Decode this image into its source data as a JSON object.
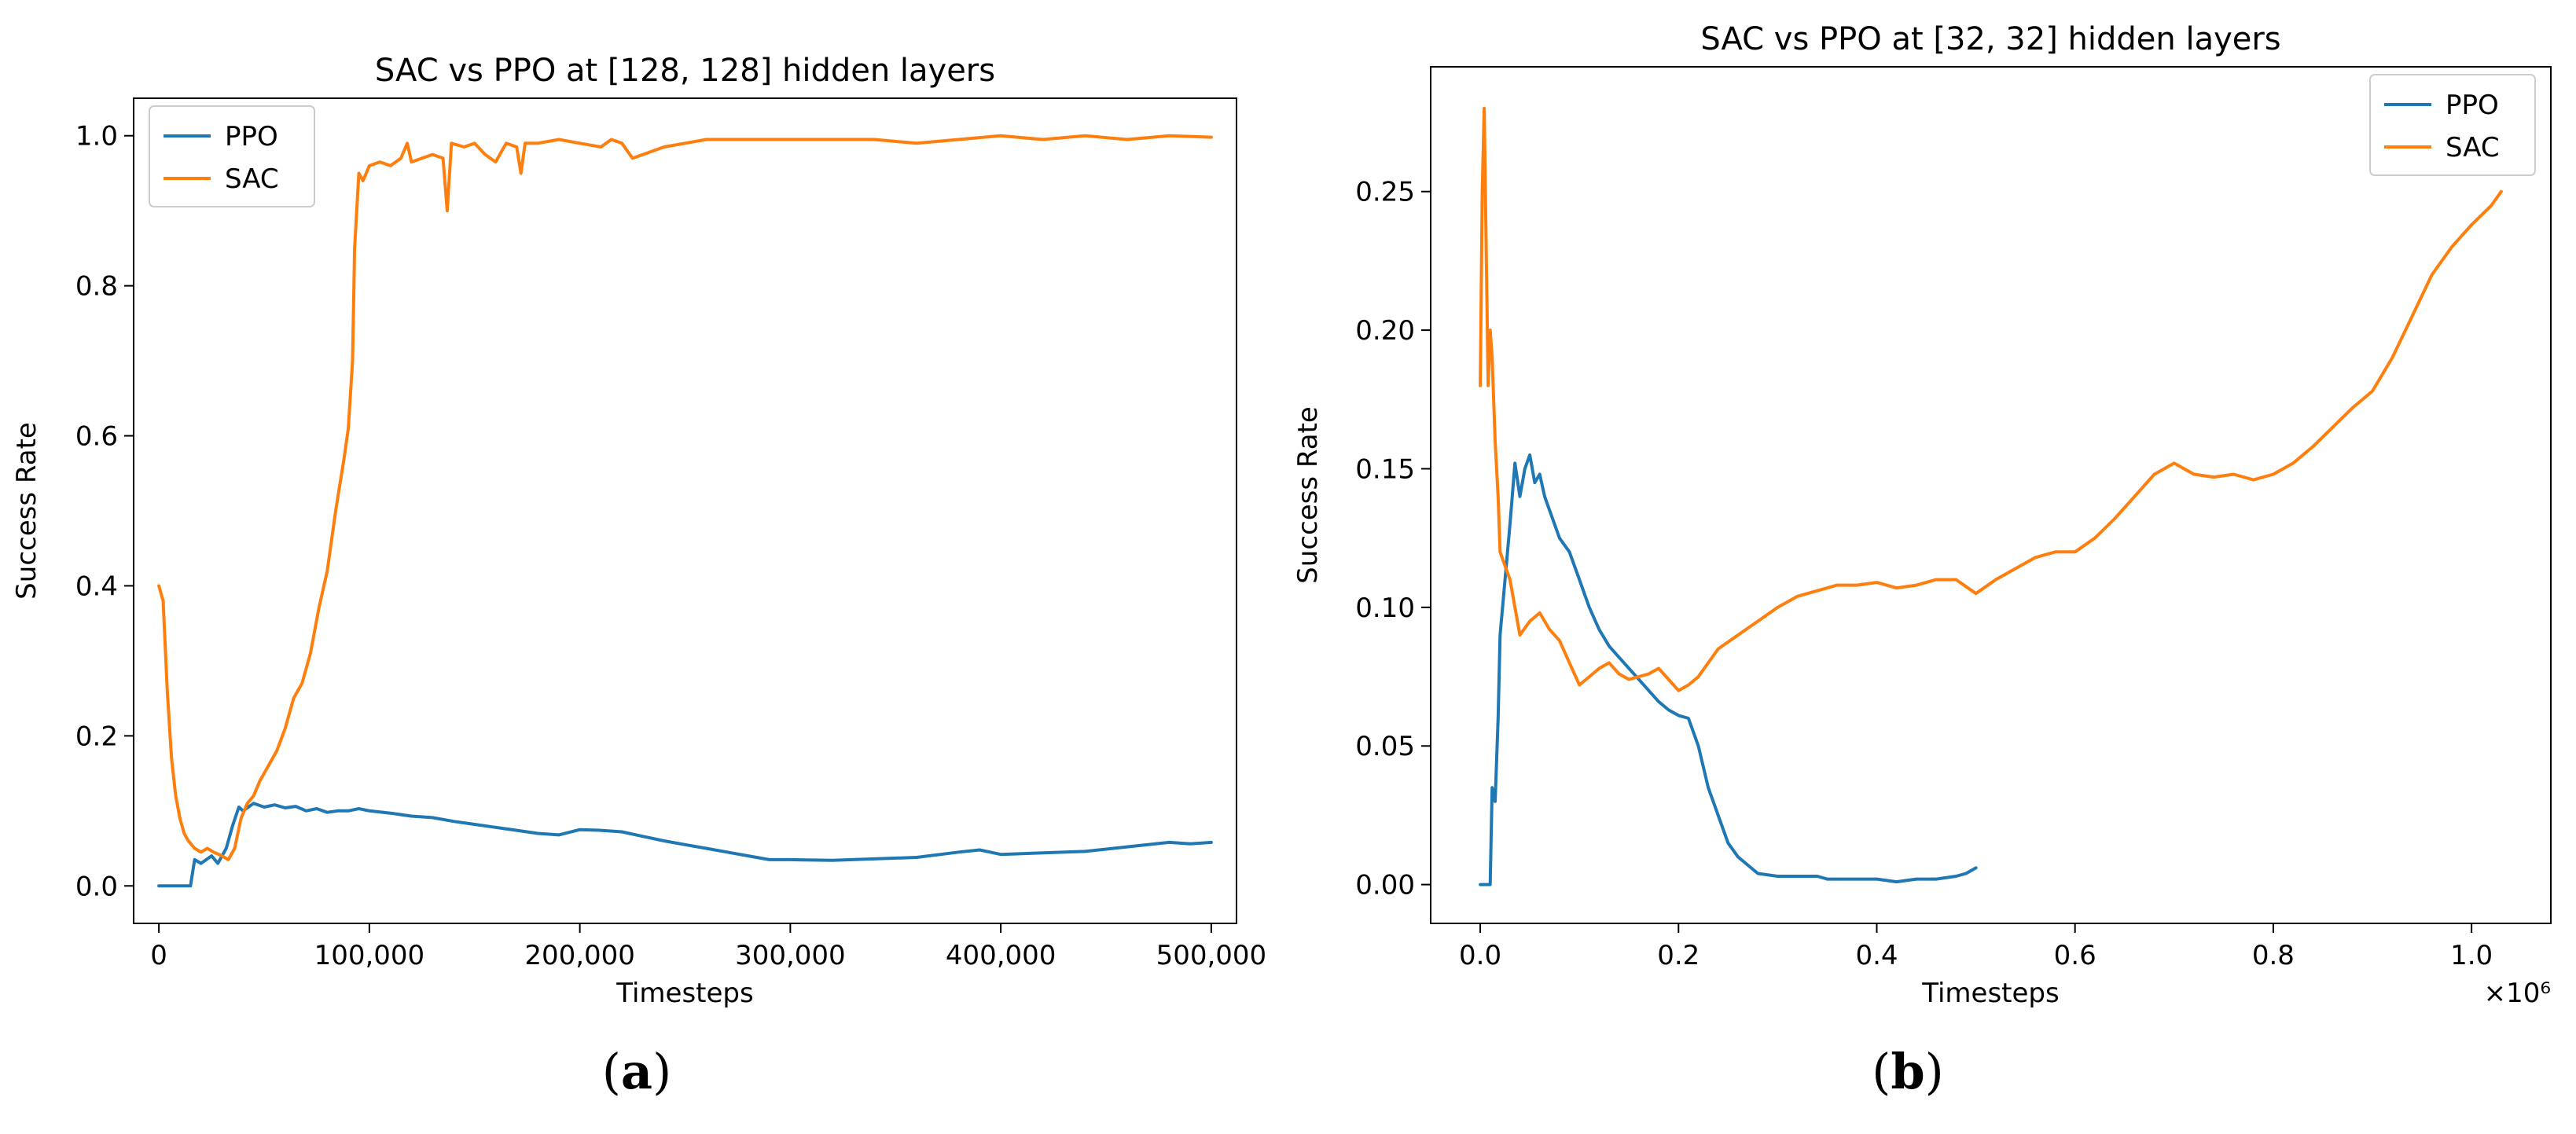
{
  "figure": {
    "panel_labels": [
      "(a)",
      "(b)"
    ]
  },
  "colors": {
    "PPO": "#1f77b4",
    "SAC": "#ff7f0e",
    "axis": "#000000"
  },
  "chart_data": [
    {
      "type": "line",
      "title": "SAC vs PPO at [128, 128] hidden layers",
      "xlabel": "Timesteps",
      "ylabel": "Success Rate",
      "xlim": [
        -12000,
        512000
      ],
      "ylim": [
        -0.05,
        1.05
      ],
      "x_ticks": [
        0,
        100000,
        200000,
        300000,
        400000,
        500000
      ],
      "x_tick_labels": [
        "0",
        "100,000",
        "200,000",
        "300,000",
        "400,000",
        "500,000"
      ],
      "y_ticks": [
        0.0,
        0.2,
        0.4,
        0.6,
        0.8,
        1.0
      ],
      "y_tick_labels": [
        "0.0",
        "0.2",
        "0.4",
        "0.6",
        "0.8",
        "1.0"
      ],
      "x_multiplier": "",
      "legend_position": "top-left",
      "legend": [
        "PPO",
        "SAC"
      ],
      "series": [
        {
          "name": "PPO",
          "points": [
            [
              0,
              0.0
            ],
            [
              10000,
              0.0
            ],
            [
              15000,
              0.0
            ],
            [
              17000,
              0.035
            ],
            [
              20000,
              0.03
            ],
            [
              25000,
              0.04
            ],
            [
              28000,
              0.03
            ],
            [
              32000,
              0.05
            ],
            [
              35000,
              0.08
            ],
            [
              38000,
              0.105
            ],
            [
              40000,
              0.1
            ],
            [
              45000,
              0.11
            ],
            [
              50000,
              0.105
            ],
            [
              55000,
              0.108
            ],
            [
              60000,
              0.104
            ],
            [
              65000,
              0.106
            ],
            [
              70000,
              0.1
            ],
            [
              75000,
              0.103
            ],
            [
              80000,
              0.098
            ],
            [
              85000,
              0.1
            ],
            [
              90000,
              0.1
            ],
            [
              95000,
              0.103
            ],
            [
              100000,
              0.1
            ],
            [
              110000,
              0.097
            ],
            [
              120000,
              0.093
            ],
            [
              130000,
              0.091
            ],
            [
              140000,
              0.086
            ],
            [
              150000,
              0.082
            ],
            [
              160000,
              0.078
            ],
            [
              170000,
              0.074
            ],
            [
              180000,
              0.07
            ],
            [
              190000,
              0.068
            ],
            [
              200000,
              0.075
            ],
            [
              210000,
              0.074
            ],
            [
              220000,
              0.072
            ],
            [
              230000,
              0.066
            ],
            [
              240000,
              0.06
            ],
            [
              250000,
              0.055
            ],
            [
              260000,
              0.05
            ],
            [
              270000,
              0.045
            ],
            [
              280000,
              0.04
            ],
            [
              290000,
              0.035
            ],
            [
              300000,
              0.035
            ],
            [
              320000,
              0.034
            ],
            [
              340000,
              0.036
            ],
            [
              360000,
              0.038
            ],
            [
              380000,
              0.045
            ],
            [
              390000,
              0.048
            ],
            [
              400000,
              0.042
            ],
            [
              420000,
              0.044
            ],
            [
              440000,
              0.046
            ],
            [
              460000,
              0.052
            ],
            [
              480000,
              0.058
            ],
            [
              490000,
              0.056
            ],
            [
              500000,
              0.058
            ]
          ]
        },
        {
          "name": "SAC",
          "points": [
            [
              0,
              0.4
            ],
            [
              2000,
              0.38
            ],
            [
              4000,
              0.26
            ],
            [
              6000,
              0.17
            ],
            [
              8000,
              0.12
            ],
            [
              10000,
              0.09
            ],
            [
              12000,
              0.07
            ],
            [
              14000,
              0.06
            ],
            [
              17000,
              0.05
            ],
            [
              20000,
              0.045
            ],
            [
              23000,
              0.05
            ],
            [
              26000,
              0.045
            ],
            [
              30000,
              0.04
            ],
            [
              33000,
              0.035
            ],
            [
              36000,
              0.05
            ],
            [
              39000,
              0.09
            ],
            [
              42000,
              0.11
            ],
            [
              45000,
              0.12
            ],
            [
              48000,
              0.14
            ],
            [
              52000,
              0.16
            ],
            [
              56000,
              0.18
            ],
            [
              60000,
              0.21
            ],
            [
              64000,
              0.25
            ],
            [
              68000,
              0.27
            ],
            [
              72000,
              0.31
            ],
            [
              76000,
              0.37
            ],
            [
              80000,
              0.42
            ],
            [
              84000,
              0.5
            ],
            [
              88000,
              0.57
            ],
            [
              90000,
              0.61
            ],
            [
              92000,
              0.7
            ],
            [
              93000,
              0.85
            ],
            [
              95000,
              0.95
            ],
            [
              97000,
              0.94
            ],
            [
              100000,
              0.96
            ],
            [
              105000,
              0.965
            ],
            [
              110000,
              0.96
            ],
            [
              115000,
              0.97
            ],
            [
              118000,
              0.99
            ],
            [
              120000,
              0.965
            ],
            [
              125000,
              0.97
            ],
            [
              130000,
              0.975
            ],
            [
              135000,
              0.97
            ],
            [
              137000,
              0.9
            ],
            [
              139000,
              0.99
            ],
            [
              145000,
              0.985
            ],
            [
              150000,
              0.99
            ],
            [
              155000,
              0.975
            ],
            [
              160000,
              0.965
            ],
            [
              165000,
              0.99
            ],
            [
              170000,
              0.985
            ],
            [
              172000,
              0.95
            ],
            [
              174000,
              0.99
            ],
            [
              180000,
              0.99
            ],
            [
              190000,
              0.995
            ],
            [
              200000,
              0.99
            ],
            [
              210000,
              0.985
            ],
            [
              215000,
              0.995
            ],
            [
              220000,
              0.99
            ],
            [
              225000,
              0.97
            ],
            [
              230000,
              0.975
            ],
            [
              240000,
              0.985
            ],
            [
              250000,
              0.99
            ],
            [
              260000,
              0.995
            ],
            [
              270000,
              0.995
            ],
            [
              280000,
              0.995
            ],
            [
              300000,
              0.995
            ],
            [
              320000,
              0.995
            ],
            [
              340000,
              0.995
            ],
            [
              360000,
              0.99
            ],
            [
              380000,
              0.995
            ],
            [
              400000,
              1.0
            ],
            [
              420000,
              0.995
            ],
            [
              440000,
              1.0
            ],
            [
              460000,
              0.995
            ],
            [
              480000,
              1.0
            ],
            [
              500000,
              0.998
            ]
          ]
        }
      ]
    },
    {
      "type": "line",
      "title": "SAC vs PPO at [32, 32] hidden layers",
      "xlabel": "Timesteps",
      "ylabel": "Success Rate",
      "xlim": [
        -0.05,
        1.08
      ],
      "ylim": [
        -0.014,
        0.295
      ],
      "x_ticks": [
        0.0,
        0.2,
        0.4,
        0.6,
        0.8,
        1.0
      ],
      "x_tick_labels": [
        "0.0",
        "0.2",
        "0.4",
        "0.6",
        "0.8",
        "1.0"
      ],
      "y_ticks": [
        0.0,
        0.05,
        0.1,
        0.15,
        0.2,
        0.25
      ],
      "y_tick_labels": [
        "0.00",
        "0.05",
        "0.10",
        "0.15",
        "0.20",
        "0.25"
      ],
      "x_multiplier": "×10⁶",
      "legend_position": "top-right",
      "legend": [
        "PPO",
        "SAC"
      ],
      "series": [
        {
          "name": "PPO",
          "points": [
            [
              0.0,
              0.0
            ],
            [
              0.01,
              0.0
            ],
            [
              0.012,
              0.035
            ],
            [
              0.015,
              0.03
            ],
            [
              0.018,
              0.06
            ],
            [
              0.02,
              0.09
            ],
            [
              0.025,
              0.11
            ],
            [
              0.03,
              0.13
            ],
            [
              0.035,
              0.152
            ],
            [
              0.04,
              0.14
            ],
            [
              0.045,
              0.15
            ],
            [
              0.05,
              0.155
            ],
            [
              0.055,
              0.145
            ],
            [
              0.06,
              0.148
            ],
            [
              0.065,
              0.14
            ],
            [
              0.07,
              0.135
            ],
            [
              0.08,
              0.125
            ],
            [
              0.09,
              0.12
            ],
            [
              0.1,
              0.11
            ],
            [
              0.11,
              0.1
            ],
            [
              0.12,
              0.092
            ],
            [
              0.13,
              0.086
            ],
            [
              0.14,
              0.082
            ],
            [
              0.15,
              0.078
            ],
            [
              0.16,
              0.074
            ],
            [
              0.17,
              0.07
            ],
            [
              0.18,
              0.066
            ],
            [
              0.19,
              0.063
            ],
            [
              0.2,
              0.061
            ],
            [
              0.21,
              0.06
            ],
            [
              0.22,
              0.05
            ],
            [
              0.23,
              0.035
            ],
            [
              0.24,
              0.025
            ],
            [
              0.25,
              0.015
            ],
            [
              0.26,
              0.01
            ],
            [
              0.27,
              0.007
            ],
            [
              0.28,
              0.004
            ],
            [
              0.3,
              0.003
            ],
            [
              0.32,
              0.003
            ],
            [
              0.34,
              0.003
            ],
            [
              0.35,
              0.002
            ],
            [
              0.38,
              0.002
            ],
            [
              0.4,
              0.002
            ],
            [
              0.42,
              0.001
            ],
            [
              0.44,
              0.002
            ],
            [
              0.46,
              0.002
            ],
            [
              0.48,
              0.003
            ],
            [
              0.49,
              0.004
            ],
            [
              0.5,
              0.006
            ]
          ]
        },
        {
          "name": "SAC",
          "points": [
            [
              0.0,
              0.18
            ],
            [
              0.002,
              0.25
            ],
            [
              0.004,
              0.28
            ],
            [
              0.006,
              0.23
            ],
            [
              0.008,
              0.18
            ],
            [
              0.01,
              0.2
            ],
            [
              0.012,
              0.19
            ],
            [
              0.015,
              0.16
            ],
            [
              0.018,
              0.14
            ],
            [
              0.02,
              0.12
            ],
            [
              0.025,
              0.115
            ],
            [
              0.03,
              0.11
            ],
            [
              0.035,
              0.1
            ],
            [
              0.04,
              0.09
            ],
            [
              0.05,
              0.095
            ],
            [
              0.06,
              0.098
            ],
            [
              0.07,
              0.092
            ],
            [
              0.08,
              0.088
            ],
            [
              0.09,
              0.08
            ],
            [
              0.1,
              0.072
            ],
            [
              0.11,
              0.075
            ],
            [
              0.12,
              0.078
            ],
            [
              0.13,
              0.08
            ],
            [
              0.14,
              0.076
            ],
            [
              0.15,
              0.074
            ],
            [
              0.16,
              0.075
            ],
            [
              0.17,
              0.076
            ],
            [
              0.18,
              0.078
            ],
            [
              0.19,
              0.074
            ],
            [
              0.2,
              0.07
            ],
            [
              0.21,
              0.072
            ],
            [
              0.22,
              0.075
            ],
            [
              0.23,
              0.08
            ],
            [
              0.24,
              0.085
            ],
            [
              0.26,
              0.09
            ],
            [
              0.28,
              0.095
            ],
            [
              0.3,
              0.1
            ],
            [
              0.32,
              0.104
            ],
            [
              0.34,
              0.106
            ],
            [
              0.36,
              0.108
            ],
            [
              0.38,
              0.108
            ],
            [
              0.4,
              0.109
            ],
            [
              0.42,
              0.107
            ],
            [
              0.44,
              0.108
            ],
            [
              0.46,
              0.11
            ],
            [
              0.48,
              0.11
            ],
            [
              0.5,
              0.105
            ],
            [
              0.52,
              0.11
            ],
            [
              0.54,
              0.114
            ],
            [
              0.56,
              0.118
            ],
            [
              0.58,
              0.12
            ],
            [
              0.6,
              0.12
            ],
            [
              0.62,
              0.125
            ],
            [
              0.64,
              0.132
            ],
            [
              0.66,
              0.14
            ],
            [
              0.68,
              0.148
            ],
            [
              0.7,
              0.152
            ],
            [
              0.72,
              0.148
            ],
            [
              0.74,
              0.147
            ],
            [
              0.76,
              0.148
            ],
            [
              0.78,
              0.146
            ],
            [
              0.8,
              0.148
            ],
            [
              0.82,
              0.152
            ],
            [
              0.84,
              0.158
            ],
            [
              0.86,
              0.165
            ],
            [
              0.88,
              0.172
            ],
            [
              0.9,
              0.178
            ],
            [
              0.92,
              0.19
            ],
            [
              0.94,
              0.205
            ],
            [
              0.96,
              0.22
            ],
            [
              0.98,
              0.23
            ],
            [
              1.0,
              0.238
            ],
            [
              1.02,
              0.245
            ],
            [
              1.03,
              0.25
            ]
          ]
        }
      ]
    }
  ]
}
